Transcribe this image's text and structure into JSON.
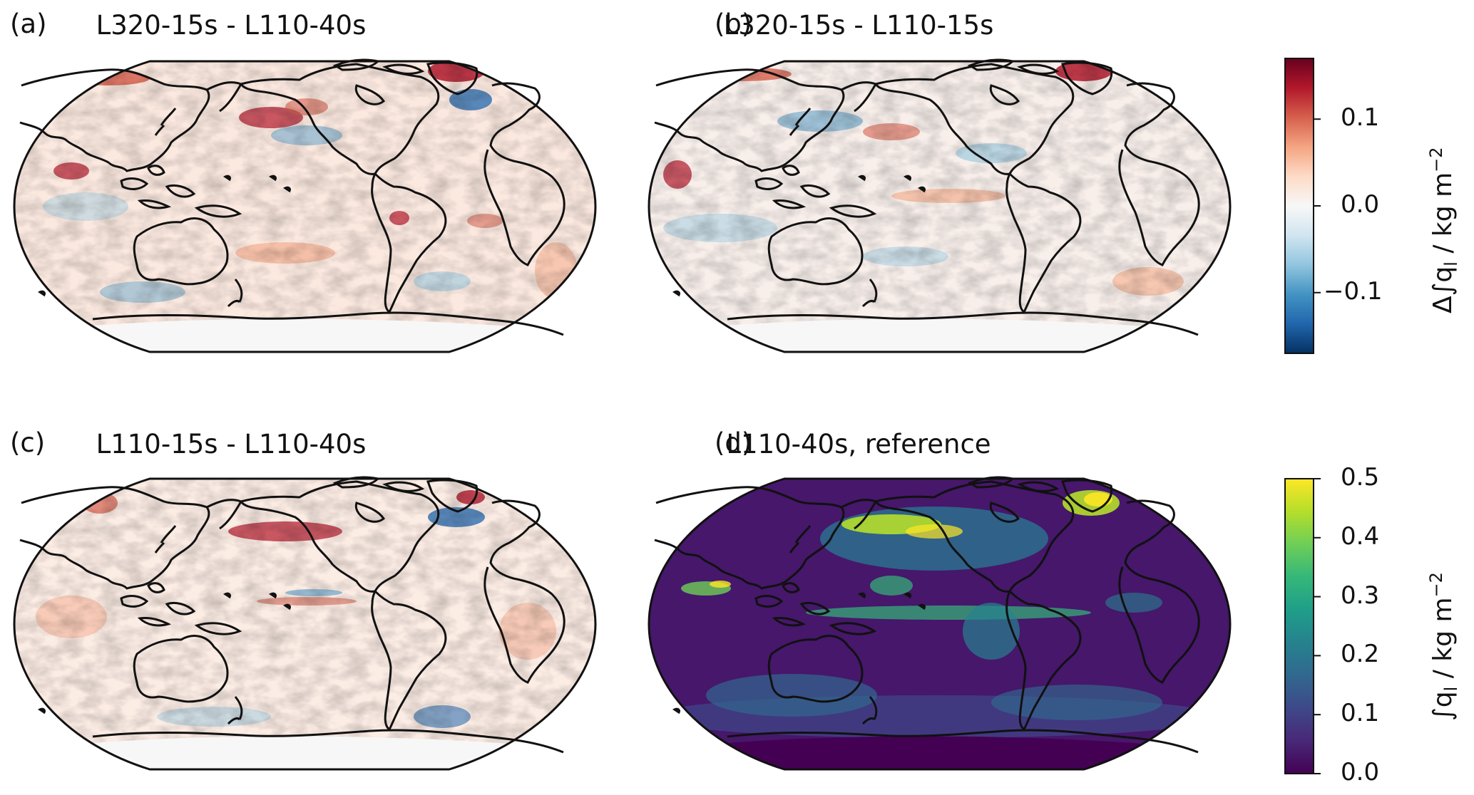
{
  "panels": [
    {
      "id": "a",
      "label": "(a)",
      "title": "L320-15s - L110-40s",
      "colormap": "diverging"
    },
    {
      "id": "b",
      "label": "(b)",
      "title": "L320-15s - L110-15s",
      "colormap": "diverging"
    },
    {
      "id": "c",
      "label": "(c)",
      "title": "L110-15s - L110-40s",
      "colormap": "diverging"
    },
    {
      "id": "d",
      "label": "(d)",
      "title": "L110-40s, reference",
      "colormap": "viridis"
    }
  ],
  "colorbars": {
    "difference": {
      "label": "Δ∫q_l / kg m⁻²",
      "label_display": "Δ∫q",
      "label_sub": "l",
      "label_unit": " / kg m",
      "label_sup": "−2",
      "range": [
        -0.17,
        0.17
      ],
      "ticks": [
        {
          "value": 0.1,
          "text": "0.1"
        },
        {
          "value": 0.0,
          "text": "0.0"
        },
        {
          "value": -0.1,
          "text": "−0.1"
        }
      ],
      "colors": [
        "#053061",
        "#2166ac",
        "#4393c3",
        "#92c5de",
        "#d1e5f0",
        "#f7f7f7",
        "#fddbc7",
        "#f4a582",
        "#d6604d",
        "#b2182b",
        "#67001f"
      ]
    },
    "reference": {
      "label": "∫q_l / kg m⁻²",
      "label_display": "∫q",
      "label_sub": "l",
      "label_unit": " / kg m",
      "label_sup": "−2",
      "range": [
        0.0,
        0.5
      ],
      "ticks": [
        {
          "value": 0.5,
          "text": "0.5"
        },
        {
          "value": 0.4,
          "text": "0.4"
        },
        {
          "value": 0.3,
          "text": "0.3"
        },
        {
          "value": 0.2,
          "text": "0.2"
        },
        {
          "value": 0.1,
          "text": "0.1"
        },
        {
          "value": 0.0,
          "text": "0.0"
        }
      ],
      "colors": [
        "#440154",
        "#482878",
        "#3e4989",
        "#31688e",
        "#26828e",
        "#1f9e89",
        "#35b779",
        "#6ece58",
        "#b5de2b",
        "#fde725"
      ]
    }
  }
}
